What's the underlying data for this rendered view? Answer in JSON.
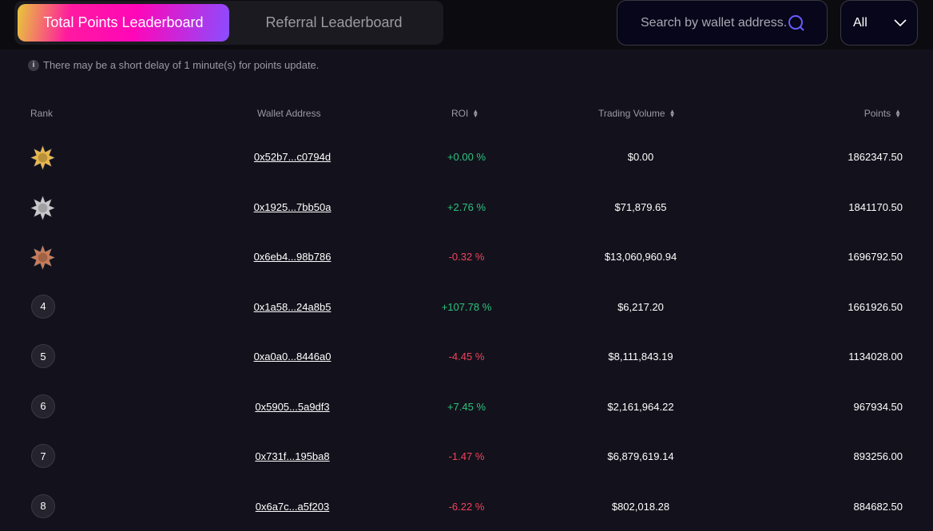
{
  "tabs": [
    {
      "label": "Total Points Leaderboard",
      "active": true
    },
    {
      "label": "Referral Leaderboard",
      "active": false
    }
  ],
  "search": {
    "placeholder": "Search by wallet address.",
    "icon": "search-icon"
  },
  "filter": {
    "selected": "All",
    "icon": "chevron-down-icon"
  },
  "notice": {
    "icon": "info-icon",
    "icon_text": "i",
    "text": "There may be a short delay of 1 minute(s) for points update."
  },
  "table": {
    "headers": {
      "rank": "Rank",
      "wallet": "Wallet Address",
      "roi": "ROI",
      "volume": "Trading Volume",
      "points": "Points"
    },
    "colors": {
      "positive": "#2ec27e",
      "negative": "#f0435a",
      "gold": "#e8b64a",
      "silver": "#c8c8cc",
      "bronze": "#c97a55"
    },
    "rows": [
      {
        "rank": "1",
        "medal": "gold",
        "wallet": "0x52b7...c0794d",
        "roi": "+0.00 %",
        "volume": "$0.00",
        "points": "1862347.50"
      },
      {
        "rank": "2",
        "medal": "silver",
        "wallet": "0x1925...7bb50a",
        "roi": "+2.76 %",
        "volume": "$71,879.65",
        "points": "1841170.50"
      },
      {
        "rank": "3",
        "medal": "bronze",
        "wallet": "0x6eb4...98b786",
        "roi": "-0.32 %",
        "volume": "$13,060,960.94",
        "points": "1696792.50"
      },
      {
        "rank": "4",
        "wallet": "0x1a58...24a8b5",
        "roi": "+107.78 %",
        "volume": "$6,217.20",
        "points": "1661926.50"
      },
      {
        "rank": "5",
        "wallet": "0xa0a0...8446a0",
        "roi": "-4.45 %",
        "volume": "$8,111,843.19",
        "points": "1134028.00"
      },
      {
        "rank": "6",
        "wallet": "0x5905...5a9df3",
        "roi": "+7.45 %",
        "volume": "$2,161,964.22",
        "points": "967934.50"
      },
      {
        "rank": "7",
        "wallet": "0x731f...195ba8",
        "roi": "-1.47 %",
        "volume": "$6,879,619.14",
        "points": "893256.00"
      },
      {
        "rank": "8",
        "wallet": "0x6a7c...a5f203",
        "roi": "-6.22 %",
        "volume": "$802,018.28",
        "points": "884682.50"
      }
    ]
  }
}
